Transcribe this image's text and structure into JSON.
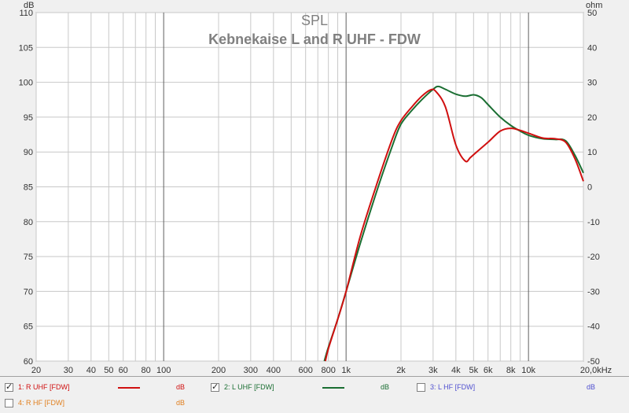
{
  "chart_data": {
    "type": "line",
    "title": "SPL",
    "subtitle": "Kebnekaise L and R UHF - FDW",
    "xlabel": "",
    "ylabel": "dB",
    "y2label": "ohm",
    "x_scale": "log",
    "xlim": [
      20,
      20000
    ],
    "ylim": [
      60,
      110
    ],
    "y2lim": [
      -50,
      50
    ],
    "grid": true,
    "x_ticks": [
      {
        "v": 20,
        "label": "20"
      },
      {
        "v": 30,
        "label": "30"
      },
      {
        "v": 40,
        "label": "40"
      },
      {
        "v": 50,
        "label": "50"
      },
      {
        "v": 60,
        "label": "60"
      },
      {
        "v": 80,
        "label": "80"
      },
      {
        "v": 100,
        "label": "100"
      },
      {
        "v": 200,
        "label": "200"
      },
      {
        "v": 300,
        "label": "300"
      },
      {
        "v": 400,
        "label": "400"
      },
      {
        "v": 600,
        "label": "600"
      },
      {
        "v": 800,
        "label": "800"
      },
      {
        "v": 1000,
        "label": "1k"
      },
      {
        "v": 2000,
        "label": "2k"
      },
      {
        "v": 3000,
        "label": "3k"
      },
      {
        "v": 4000,
        "label": "4k"
      },
      {
        "v": 5000,
        "label": "5k"
      },
      {
        "v": 6000,
        "label": "6k"
      },
      {
        "v": 8000,
        "label": "8k"
      },
      {
        "v": 10000,
        "label": "10k"
      },
      {
        "v": 20000,
        "label": "20,0kHz"
      }
    ],
    "y_ticks": [
      "110",
      "105",
      "100",
      "95",
      "90",
      "85",
      "80",
      "75",
      "70",
      "65",
      "60"
    ],
    "y2_ticks": [
      "50",
      "40",
      "30",
      "20",
      "10",
      "0",
      "-10",
      "-20",
      "-30",
      "-40",
      "-50"
    ],
    "series": [
      {
        "name": "2: L UHF [FDW]",
        "color": "#1a6e32",
        "x": [
          760,
          800,
          900,
          1000,
          1200,
          1500,
          1800,
          2000,
          2300,
          2600,
          3000,
          3200,
          3500,
          4000,
          4500,
          5000,
          5500,
          6000,
          7000,
          8000,
          9000,
          10000,
          12000,
          14000,
          16000,
          18000,
          20000
        ],
        "y": [
          60,
          62,
          66,
          70,
          77,
          85,
          91,
          94,
          96,
          97.5,
          99,
          99.4,
          99,
          98.3,
          98,
          98.2,
          97.8,
          96.8,
          95,
          93.8,
          93,
          92.4,
          91.9,
          91.8,
          91.6,
          89.5,
          87
        ]
      },
      {
        "name": "1: R UHF [FDW]",
        "color": "#d01010",
        "x": [
          770,
          800,
          900,
          1000,
          1200,
          1500,
          1800,
          2000,
          2300,
          2600,
          2900,
          3100,
          3500,
          4000,
          4500,
          4800,
          5200,
          6000,
          7000,
          8000,
          9000,
          10000,
          12000,
          14000,
          16000,
          18000,
          20000
        ],
        "y": [
          60,
          61.8,
          66,
          70,
          78,
          86,
          92,
          94.5,
          96.5,
          98,
          98.9,
          98.7,
          96.5,
          91,
          88.7,
          89.2,
          90,
          91.4,
          93,
          93.4,
          93.1,
          92.7,
          92,
          91.9,
          91.4,
          89,
          85.8
        ]
      }
    ]
  },
  "legend": [
    {
      "label": "1: R UHF [FDW]",
      "unit": "dB",
      "checked": true,
      "color": "#d01010",
      "unit_color": "#d01010",
      "show_swatch": true
    },
    {
      "label": "2: L UHF [FDW]",
      "unit": "dB",
      "checked": true,
      "color": "#1a6e32",
      "unit_color": "#1a6e32",
      "show_swatch": true
    },
    {
      "label": "3: L HF [FDW]",
      "unit": "dB",
      "checked": false,
      "color": "#5050d0",
      "unit_color": "#5050d0",
      "show_swatch": false
    },
    {
      "label": "4: R HF [FDW]",
      "unit": "dB",
      "checked": false,
      "color": "#e08020",
      "unit_color": "#e08020",
      "show_swatch": false
    }
  ]
}
